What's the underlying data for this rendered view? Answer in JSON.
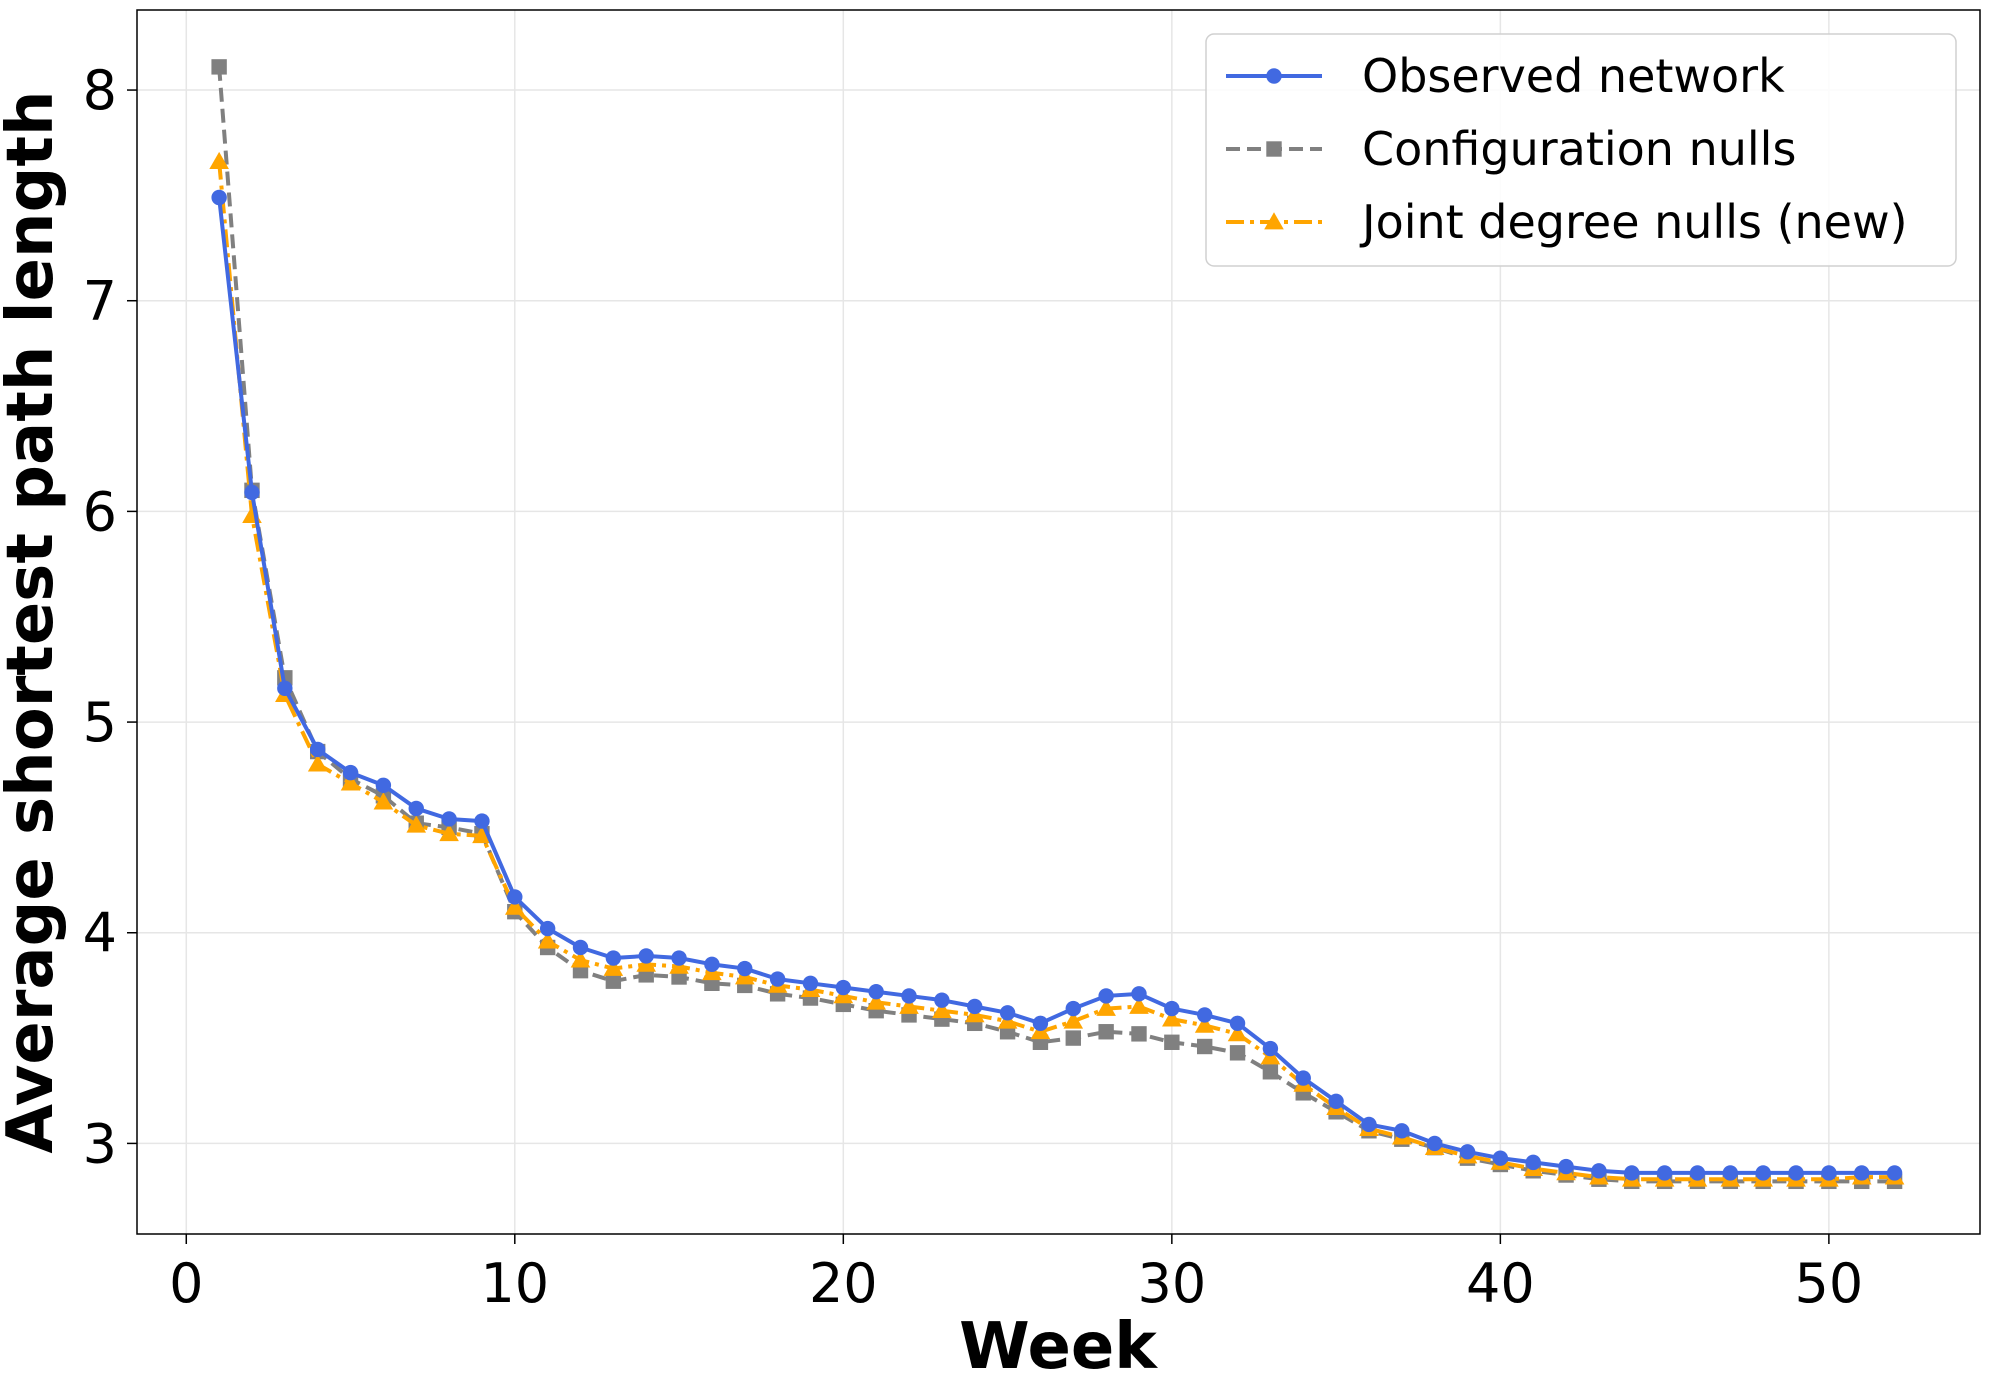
{
  "chart_data": {
    "type": "line",
    "title": "",
    "xlabel": "Week",
    "ylabel": "Average shortest path length",
    "xlim": [
      -1.5,
      54.6
    ],
    "ylim": [
      2.57,
      8.38
    ],
    "xticks": [
      0,
      10,
      20,
      30,
      40,
      50
    ],
    "yticks": [
      3,
      4,
      5,
      6,
      7,
      8
    ],
    "grid": true,
    "legend_position": "top-right",
    "x": [
      1,
      2,
      3,
      4,
      5,
      6,
      7,
      8,
      9,
      10,
      11,
      12,
      13,
      14,
      15,
      16,
      17,
      18,
      19,
      20,
      21,
      22,
      23,
      24,
      25,
      26,
      27,
      28,
      29,
      30,
      31,
      32,
      33,
      34,
      35,
      36,
      37,
      38,
      39,
      40,
      41,
      42,
      43,
      44,
      45,
      46,
      47,
      48,
      49,
      50,
      51,
      52
    ],
    "series": [
      {
        "name": "Observed network",
        "color": "#4169e1",
        "style": "solid",
        "marker": "circle",
        "values": [
          7.49,
          6.09,
          5.16,
          4.87,
          4.76,
          4.7,
          4.59,
          4.54,
          4.53,
          4.17,
          4.02,
          3.93,
          3.88,
          3.89,
          3.88,
          3.85,
          3.83,
          3.78,
          3.76,
          3.74,
          3.72,
          3.7,
          3.68,
          3.65,
          3.62,
          3.57,
          3.64,
          3.7,
          3.71,
          3.64,
          3.61,
          3.57,
          3.45,
          3.31,
          3.2,
          3.09,
          3.06,
          3.0,
          2.96,
          2.93,
          2.91,
          2.89,
          2.87,
          2.86,
          2.86,
          2.86,
          2.86,
          2.86,
          2.86,
          2.86,
          2.86,
          2.86
        ]
      },
      {
        "name": "Configuration nulls",
        "color": "#808080",
        "style": "dashed",
        "marker": "square",
        "values": [
          8.11,
          6.1,
          5.21,
          4.86,
          4.73,
          4.65,
          4.52,
          4.5,
          4.47,
          4.1,
          3.93,
          3.82,
          3.77,
          3.8,
          3.79,
          3.76,
          3.75,
          3.71,
          3.69,
          3.66,
          3.63,
          3.61,
          3.59,
          3.57,
          3.53,
          3.48,
          3.5,
          3.53,
          3.52,
          3.48,
          3.46,
          3.43,
          3.34,
          3.24,
          3.15,
          3.06,
          3.02,
          2.98,
          2.93,
          2.9,
          2.87,
          2.85,
          2.83,
          2.82,
          2.82,
          2.82,
          2.82,
          2.82,
          2.82,
          2.82,
          2.82,
          2.82
        ]
      },
      {
        "name": "Joint degree nulls (new)",
        "color": "#ffa500",
        "style": "dashdot",
        "marker": "triangle",
        "values": [
          7.66,
          5.98,
          5.13,
          4.8,
          4.71,
          4.62,
          4.51,
          4.47,
          4.46,
          4.12,
          3.96,
          3.87,
          3.83,
          3.85,
          3.84,
          3.81,
          3.79,
          3.75,
          3.73,
          3.7,
          3.67,
          3.65,
          3.63,
          3.61,
          3.58,
          3.53,
          3.58,
          3.64,
          3.65,
          3.59,
          3.56,
          3.52,
          3.41,
          3.28,
          3.17,
          3.07,
          3.03,
          2.98,
          2.94,
          2.91,
          2.88,
          2.86,
          2.84,
          2.83,
          2.83,
          2.83,
          2.83,
          2.83,
          2.83,
          2.83,
          2.84,
          2.84
        ]
      }
    ]
  }
}
